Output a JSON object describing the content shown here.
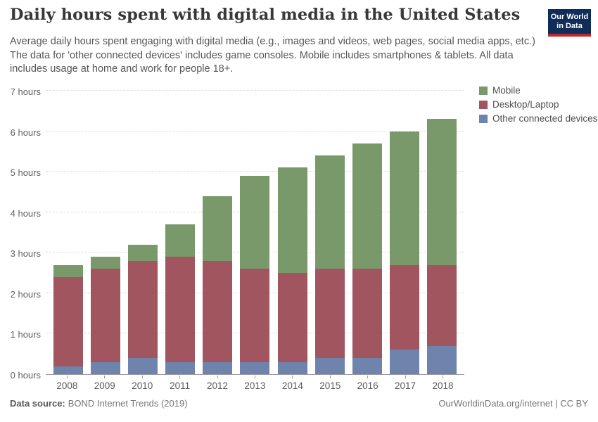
{
  "header": {
    "title": "Daily hours spent with digital media in the United States",
    "subtitle": "Average daily hours spent engaging with digital media (e.g., images and videos, web pages, social media apps, etc.) The data for 'other connected devices' includes game consoles. Mobile includes smartphones & tablets. All data includes usage at home and work for people 18+.",
    "logo": {
      "line1": "Our World",
      "line2": "in Data",
      "bg_color": "#102d59",
      "accent_color": "#c0272d",
      "text_color": "#ffffff"
    }
  },
  "legend": [
    {
      "label": "Mobile",
      "color": "#79996b"
    },
    {
      "label": "Desktop/Laptop",
      "color": "#a0555f"
    },
    {
      "label": "Other connected devices",
      "color": "#6e84ad"
    }
  ],
  "chart_data": {
    "type": "bar",
    "stacked": true,
    "title": "Daily hours spent with digital media in the United States",
    "xlabel": "",
    "ylabel": "",
    "ylim": [
      0,
      7
    ],
    "ytick_step": 1,
    "ytick_format": "{n} hours",
    "grid": "horizontal-dashed",
    "legend_position": "top-right",
    "categories": [
      "2008",
      "2009",
      "2010",
      "2011",
      "2012",
      "2013",
      "2014",
      "2015",
      "2016",
      "2017",
      "2018"
    ],
    "series": [
      {
        "name": "Other connected devices",
        "color": "#6e84ad",
        "values": [
          0.2,
          0.3,
          0.4,
          0.3,
          0.3,
          0.3,
          0.3,
          0.4,
          0.4,
          0.6,
          0.7
        ]
      },
      {
        "name": "Desktop/Laptop",
        "color": "#a0555f",
        "values": [
          2.2,
          2.3,
          2.4,
          2.6,
          2.5,
          2.3,
          2.2,
          2.2,
          2.2,
          2.1,
          2.0
        ]
      },
      {
        "name": "Mobile",
        "color": "#79996b",
        "values": [
          0.3,
          0.3,
          0.4,
          0.8,
          1.6,
          2.3,
          2.6,
          2.8,
          3.1,
          3.3,
          3.6
        ]
      }
    ],
    "totals": [
      2.7,
      2.9,
      3.2,
      3.7,
      4.4,
      4.9,
      5.1,
      5.4,
      5.7,
      6.0,
      6.3
    ]
  },
  "footer": {
    "source_label": "Data source:",
    "source_text": "BOND Internet Trends (2019)",
    "attribution": "OurWorldinData.org/internet | CC BY"
  }
}
